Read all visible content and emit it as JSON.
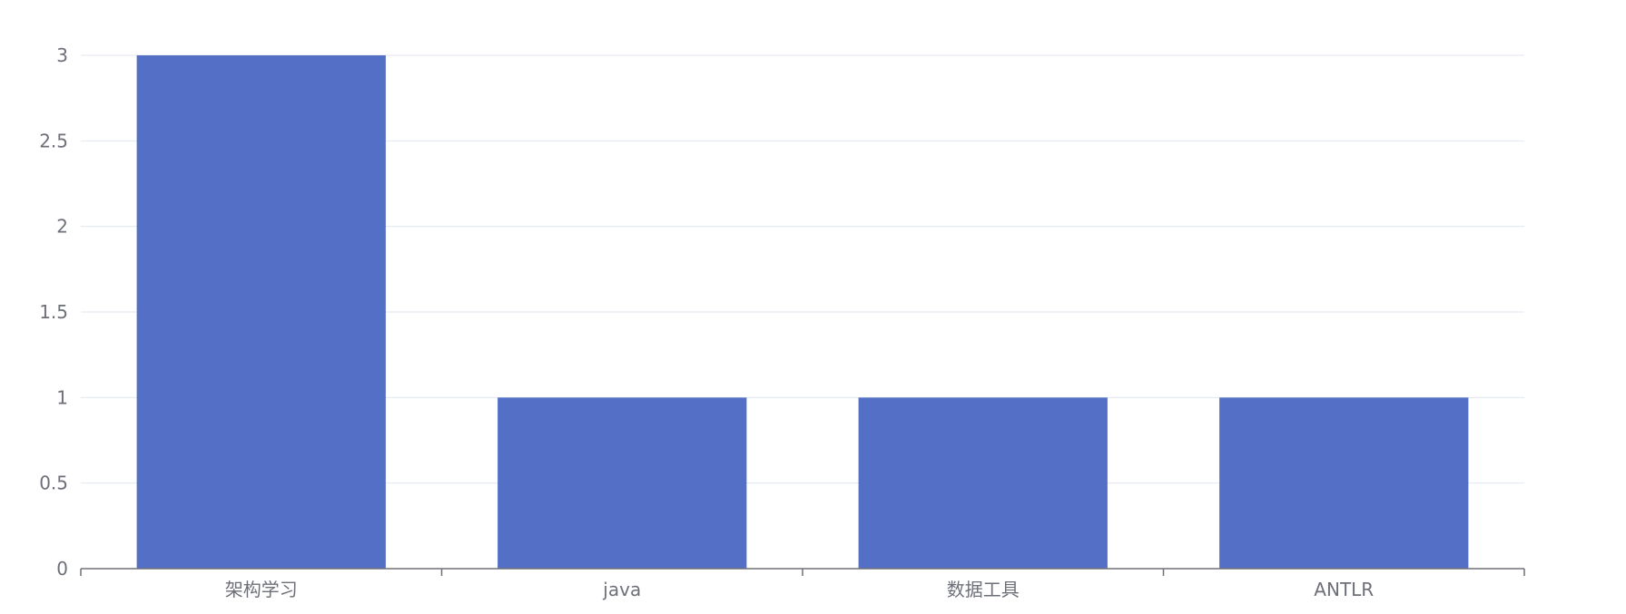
{
  "chart_data": {
    "type": "bar",
    "categories": [
      "架构学习",
      "java",
      "数据工具",
      "ANTLR"
    ],
    "values": [
      3,
      1,
      1,
      1
    ],
    "title": "",
    "xlabel": "",
    "ylabel": "",
    "ylim": [
      0,
      3
    ],
    "yticks": [
      "0",
      "0.5",
      "1",
      "1.5",
      "2",
      "2.5",
      "3"
    ],
    "grid": true,
    "legend": "none",
    "colors": {
      "bar": "#5470c6",
      "grid": "#e0e6f1",
      "axis": "#6e7079",
      "label": "#6e7079"
    }
  }
}
